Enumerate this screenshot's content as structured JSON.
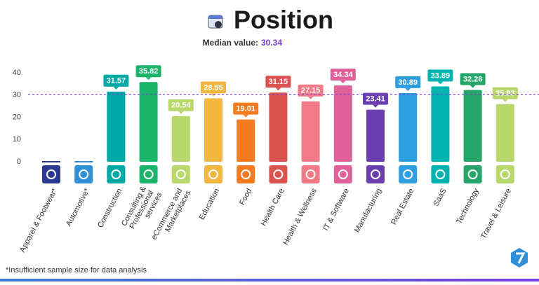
{
  "chart_data": {
    "type": "bar",
    "title": "Position",
    "median_label": "Median value:",
    "median": 30.34,
    "categories": [
      "Apparel & Footwear*",
      "Automotive*",
      "Construction",
      "Consulting & Professional services",
      "eCommerce and Marketplaces",
      "Education",
      "Food",
      "Health Care",
      "Health & Wellness",
      "IT & Software",
      "Manufacturing",
      "Real Estate",
      "SaaS",
      "Technology",
      "Travel & Leisure"
    ],
    "values": [
      null,
      null,
      31.57,
      35.82,
      20.54,
      28.55,
      19.01,
      31.15,
      27.15,
      34.34,
      23.41,
      30.89,
      33.89,
      32.28,
      25.93
    ],
    "colors": [
      "#2b3a8f",
      "#2f8fd8",
      "#00a9a5",
      "#1cb36b",
      "#b8d86b",
      "#f2b740",
      "#f47b20",
      "#d9534f",
      "#f27a86",
      "#e0609a",
      "#6a3fb0",
      "#2f9ee0",
      "#00b3b0",
      "#25a56a",
      "#b8d86b"
    ],
    "median_color": "#7b3fe0",
    "ylim": [
      0,
      40
    ],
    "yticks": [
      0,
      10,
      20,
      30,
      40
    ],
    "grid": false,
    "footnote": "*Insufficient sample size for data analysis"
  }
}
